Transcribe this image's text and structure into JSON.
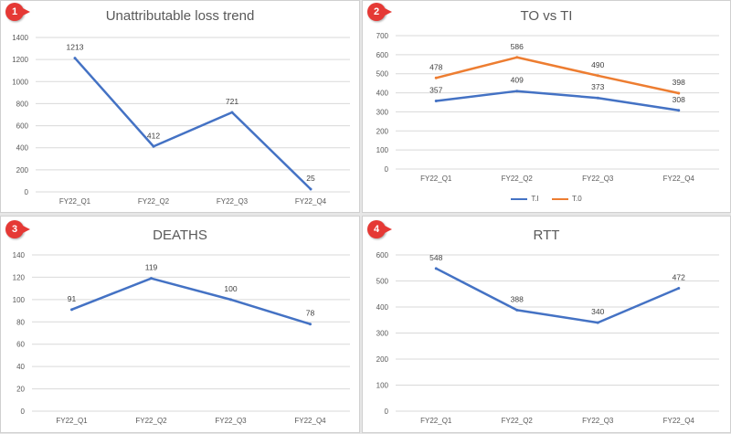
{
  "colors": {
    "blue": "#4472c4",
    "orange": "#ed7d31",
    "grid": "#d9d9d9",
    "text": "#595959"
  },
  "charts": [
    {
      "badge": "1",
      "title": "Unattributable loss trend"
    },
    {
      "badge": "2",
      "title": "TO vs TI"
    },
    {
      "badge": "3",
      "title": "DEATHS"
    },
    {
      "badge": "4",
      "title": "RTT"
    }
  ],
  "chart_data": [
    {
      "type": "line",
      "title": "Unattributable loss trend",
      "categories": [
        "FY22_Q1",
        "FY22_Q2",
        "FY22_Q3",
        "FY22_Q4"
      ],
      "series": [
        {
          "values": [
            1213,
            412,
            721,
            25
          ],
          "color": "#4472c4"
        }
      ],
      "ylim": [
        0,
        1400
      ],
      "ystep": 200,
      "grid": true,
      "data_labels": true
    },
    {
      "type": "line",
      "title": "TO vs TI",
      "categories": [
        "FY22_Q1",
        "FY22_Q2",
        "FY22_Q3",
        "FY22_Q4"
      ],
      "series": [
        {
          "name": "T.I",
          "values": [
            357,
            409,
            373,
            308
          ],
          "color": "#4472c4"
        },
        {
          "name": "T.0",
          "values": [
            478,
            586,
            490,
            398
          ],
          "color": "#ed7d31"
        }
      ],
      "ylim": [
        0,
        700
      ],
      "ystep": 100,
      "grid": true,
      "data_labels": true,
      "legend": "bottom"
    },
    {
      "type": "line",
      "title": "DEATHS",
      "categories": [
        "FY22_Q1",
        "FY22_Q2",
        "FY22_Q3",
        "FY22_Q4"
      ],
      "series": [
        {
          "values": [
            91,
            119,
            100,
            78
          ],
          "color": "#4472c4"
        }
      ],
      "ylim": [
        0,
        140
      ],
      "ystep": 20,
      "grid": true,
      "data_labels": true
    },
    {
      "type": "line",
      "title": "RTT",
      "categories": [
        "FY22_Q1",
        "FY22_Q2",
        "FY22_Q3",
        "FY22_Q4"
      ],
      "series": [
        {
          "values": [
            548,
            388,
            340,
            472
          ],
          "color": "#4472c4"
        }
      ],
      "ylim": [
        0,
        600
      ],
      "ystep": 100,
      "grid": true,
      "data_labels": true
    }
  ]
}
